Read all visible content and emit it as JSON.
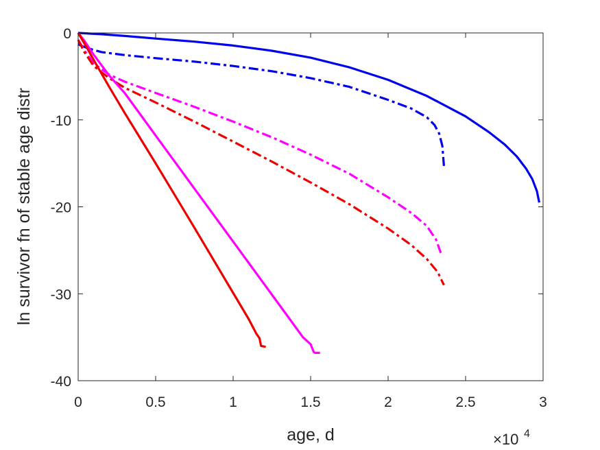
{
  "chart_data": {
    "type": "line",
    "title": "",
    "xlabel": "age, d",
    "ylabel": "ln survivor fn of stable age distr",
    "x_exponent_label": {
      "base": "×10",
      "exp": "4"
    },
    "xlim": [
      0,
      30000
    ],
    "ylim": [
      -40,
      0
    ],
    "xticks": [
      0,
      5000,
      10000,
      15000,
      20000,
      25000,
      30000
    ],
    "xtick_labels": [
      "0",
      "0.5",
      "1",
      "1.5",
      "2",
      "2.5",
      "3"
    ],
    "yticks": [
      0,
      -10,
      -20,
      -30,
      -40
    ],
    "ytick_labels": [
      "0",
      "-10",
      "-20",
      "-30",
      "-40"
    ],
    "grid": false,
    "box": true,
    "legend": "none",
    "series": [
      {
        "color": "#0000ee",
        "style": "solid",
        "x": [
          0,
          1500,
          3000,
          5000,
          7500,
          10000,
          12500,
          15000,
          17500,
          20000,
          22500,
          25000,
          26500,
          27500,
          28300,
          28900,
          29300,
          29600,
          29750
        ],
        "y": [
          0,
          -0.15,
          -0.35,
          -0.65,
          -1.0,
          -1.45,
          -2.05,
          -2.85,
          -3.95,
          -5.4,
          -7.25,
          -9.6,
          -11.4,
          -12.8,
          -14.2,
          -15.6,
          -16.8,
          -18.2,
          -19.5
        ]
      },
      {
        "color": "#0000ee",
        "style": "dashdot",
        "x": [
          0,
          300,
          700,
          1500,
          3000,
          5000,
          7500,
          10000,
          12500,
          15000,
          17500,
          20000,
          21500,
          22500,
          23000,
          23300,
          23500,
          23600
        ],
        "y": [
          -1.3,
          -1.55,
          -1.8,
          -2.2,
          -2.55,
          -2.9,
          -3.3,
          -3.8,
          -4.4,
          -5.2,
          -6.2,
          -7.7,
          -8.7,
          -9.7,
          -10.6,
          -11.6,
          -13.0,
          -15.3
        ]
      },
      {
        "color": "#ff00ff",
        "style": "dashdot",
        "x": [
          0,
          400,
          1000,
          2000,
          3000,
          5000,
          7500,
          10000,
          12500,
          15000,
          17500,
          20000,
          21500,
          22500,
          23100,
          23400
        ],
        "y": [
          -0.8,
          -2.0,
          -3.5,
          -4.8,
          -5.6,
          -6.9,
          -8.5,
          -10.2,
          -12.0,
          -14.0,
          -16.2,
          -18.9,
          -20.7,
          -22.2,
          -23.8,
          -25.3
        ]
      },
      {
        "color": "#ee0000",
        "style": "dashdot",
        "x": [
          0,
          400,
          1000,
          2000,
          3000,
          5000,
          7500,
          10000,
          12500,
          15000,
          17500,
          20000,
          21500,
          22500,
          23200,
          23600
        ],
        "y": [
          -0.8,
          -2.2,
          -3.8,
          -5.2,
          -6.3,
          -8.0,
          -10.2,
          -12.5,
          -14.8,
          -17.2,
          -19.7,
          -22.5,
          -24.4,
          -26.0,
          -27.5,
          -29.0
        ]
      },
      {
        "color": "#ff00ff",
        "style": "solid",
        "x": [
          0,
          400,
          1000,
          2000,
          3000,
          5000,
          7500,
          10000,
          12500,
          14500,
          15000,
          15200,
          15300,
          15600
        ],
        "y": [
          0,
          -0.9,
          -2.5,
          -4.9,
          -6.9,
          -11.8,
          -17.9,
          -24.0,
          -30.1,
          -35.0,
          -35.8,
          -36.7,
          -36.8,
          -36.8
        ]
      },
      {
        "color": "#ee0000",
        "style": "solid",
        "x": [
          0,
          500,
          1000,
          2000,
          3000,
          5000,
          7500,
          10000,
          11000,
          11500,
          11700,
          11800,
          12100
        ],
        "y": [
          0,
          -1.5,
          -3.1,
          -6.2,
          -9.2,
          -15.0,
          -22.4,
          -29.9,
          -32.9,
          -34.6,
          -35.1,
          -36.0,
          -36.1
        ]
      }
    ]
  }
}
